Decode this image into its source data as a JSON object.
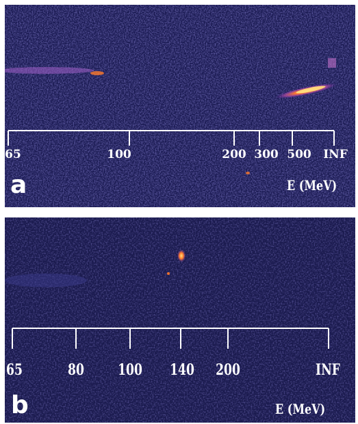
{
  "panels": [
    {
      "letter": "a",
      "axis_title": "E (MeV)",
      "ticks": [
        "65",
        "100",
        "200",
        "300",
        "500",
        "INF"
      ]
    },
    {
      "letter": "b",
      "axis_title": "E (MeV)",
      "ticks": [
        "65",
        "80",
        "100",
        "140",
        "200",
        "INF"
      ]
    }
  ],
  "colors": {
    "background": "#1a1a52",
    "scale": "#ffffff",
    "signal_hot": "#ffe080",
    "signal_warm": "#ff7a2a",
    "signal_cool": "#b04aa8"
  }
}
